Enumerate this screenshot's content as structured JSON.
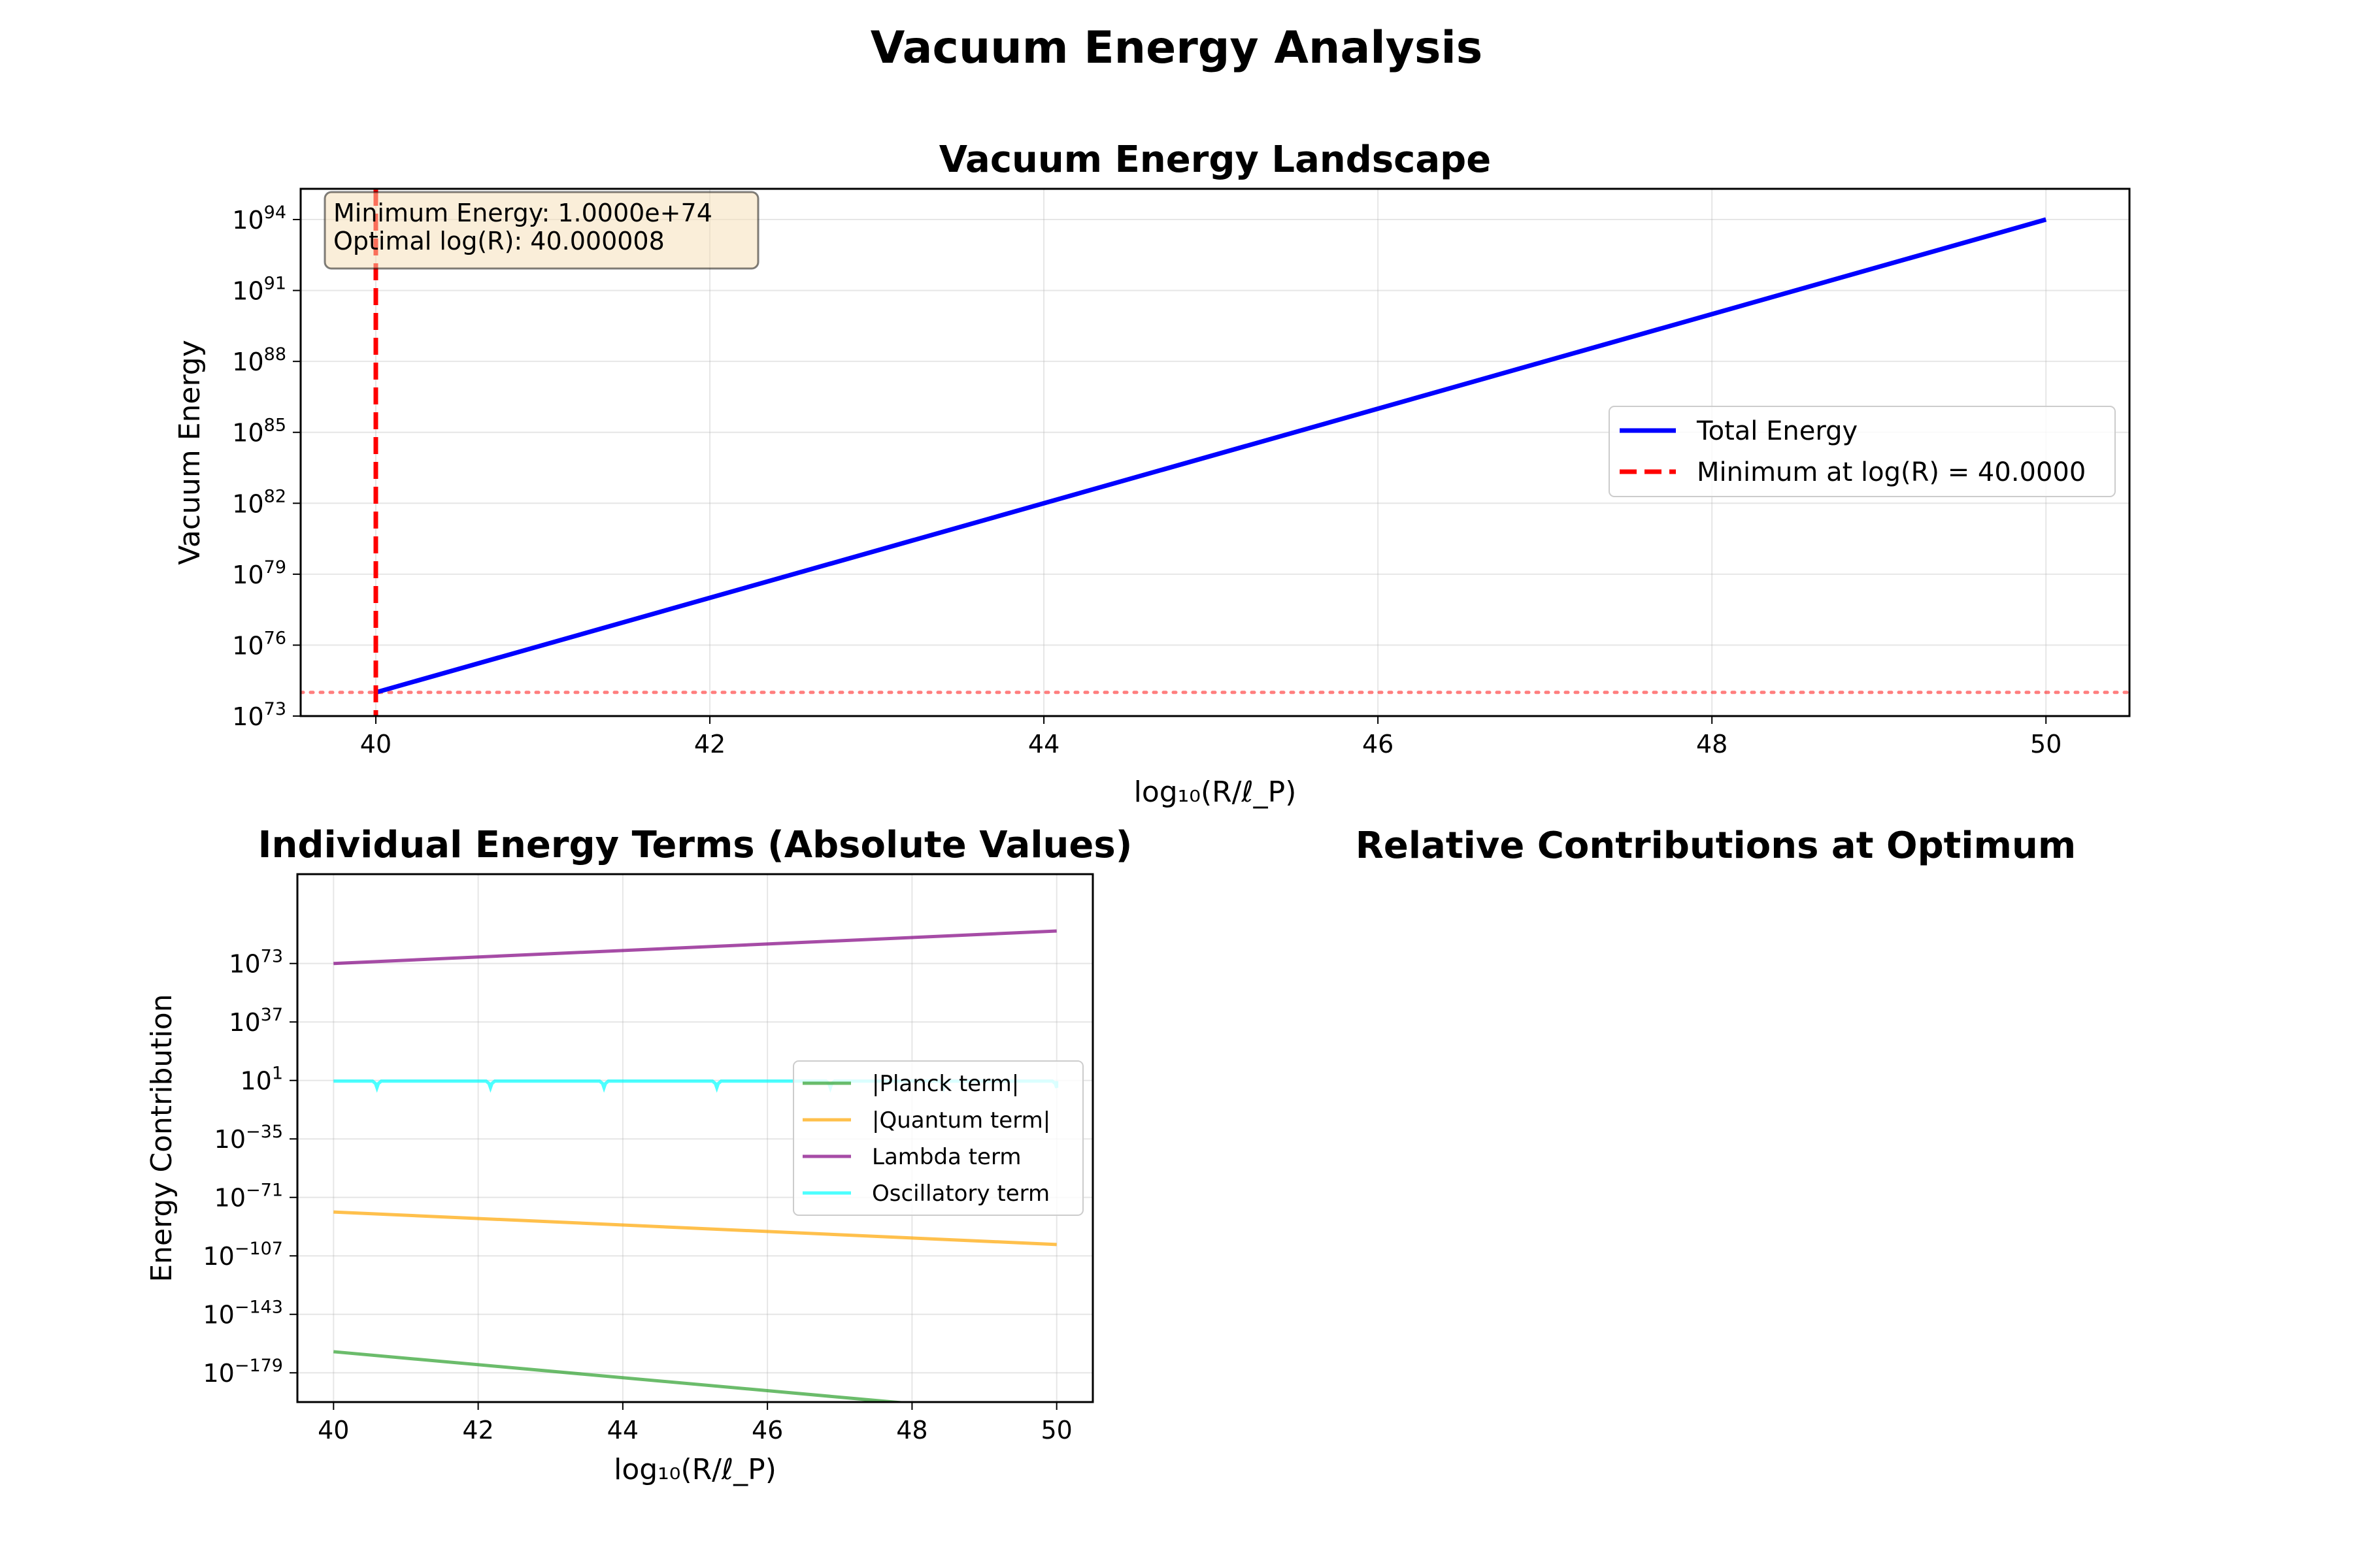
{
  "figure_title": "Vacuum Energy Analysis",
  "chart_data": [
    {
      "type": "line",
      "title": "Vacuum Energy Landscape",
      "xlabel": "log₁₀(R/ℓ_P)",
      "ylabel": "Vacuum Energy",
      "yscale": "log",
      "xlim": [
        39.55,
        50.5
      ],
      "ylim_log10": [
        73,
        95.3
      ],
      "xticks": [
        40,
        42,
        44,
        46,
        48,
        50
      ],
      "yticks_log10": [
        73,
        76,
        79,
        82,
        85,
        88,
        91,
        94
      ],
      "grid": true,
      "legend_loc": "center-right",
      "series": [
        {
          "name": "Total Energy",
          "color": "#0000ff",
          "style": "solid",
          "x": [
            40,
            50
          ],
          "y_log10": [
            74,
            94
          ]
        },
        {
          "name": "Minimum at log(R) = 40.0000",
          "color": "#ff0000",
          "style": "dashed",
          "vertical_x": 40
        }
      ],
      "hline": {
        "y_log10": 74,
        "color": "#ff0000",
        "style": "dotted",
        "alpha": 0.5
      },
      "annotation": {
        "lines": [
          "Minimum Energy: 1.0000e+74",
          "Optimal log(R): 40.000008"
        ],
        "loc": "top-left"
      }
    },
    {
      "type": "line",
      "title": "Individual Energy Terms (Absolute Values)",
      "xlabel": "log₁₀(R/ℓ_P)",
      "ylabel": "Energy Contribution",
      "yscale": "log",
      "xlim": [
        39.5,
        50.5
      ],
      "ylim_log10": [
        -197,
        128
      ],
      "xticks": [
        40,
        42,
        44,
        46,
        48,
        50
      ],
      "yticks_log10": [
        73,
        37,
        1,
        -35,
        -71,
        -107,
        -143,
        -179
      ],
      "grid": true,
      "legend_loc": "center-right",
      "series": [
        {
          "name": "|Planck term|",
          "color": "#2ca02c",
          "x": [
            40,
            50
          ],
          "y_log10": [
            -166,
            -206
          ]
        },
        {
          "name": "|Quantum term|",
          "color": "#ffa500",
          "x": [
            40,
            50
          ],
          "y_log10": [
            -80,
            -100
          ]
        },
        {
          "name": "Lambda term",
          "color": "#800080",
          "x": [
            40,
            50
          ],
          "y_log10": [
            73,
            93
          ]
        },
        {
          "name": "Oscillatory term",
          "color": "#00ffff",
          "x": [
            40,
            50
          ],
          "y_log10": [
            0.6,
            0.6
          ],
          "dips_x": [
            40.6,
            42.17,
            43.74,
            45.3,
            46.87,
            48.44,
            50.0
          ],
          "dip_log10": -3.5
        }
      ]
    },
    {
      "type": "pie",
      "title": "Relative Contributions at Optimum"
    }
  ]
}
